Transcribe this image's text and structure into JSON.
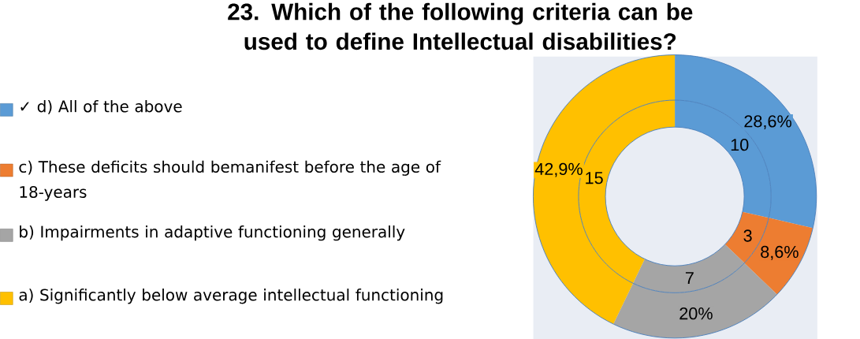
{
  "chart_data": {
    "type": "donut",
    "title": "23. Which of the following criteria can be used to define Intellectual disabilities?",
    "categories": [
      "✓ d) All of the above",
      "c) These deficits should bemanifest before the age of 18-years",
      "b) Impairments in adaptive functioning generally",
      "a) Significantly below average intellectual functioning"
    ],
    "colors": [
      "#5b9bd5",
      "#ed7d31",
      "#a5a5a5",
      "#ffc000"
    ],
    "series": [
      {
        "values": [
          10,
          3,
          7,
          15
        ],
        "value_labels": [
          "10",
          "3",
          "7",
          "15"
        ]
      },
      {
        "values": [
          28.6,
          8.6,
          20,
          42.9
        ],
        "value_labels": [
          "28,6%",
          "8,6%",
          "20%",
          "42,9%"
        ]
      }
    ],
    "legend": "left"
  }
}
